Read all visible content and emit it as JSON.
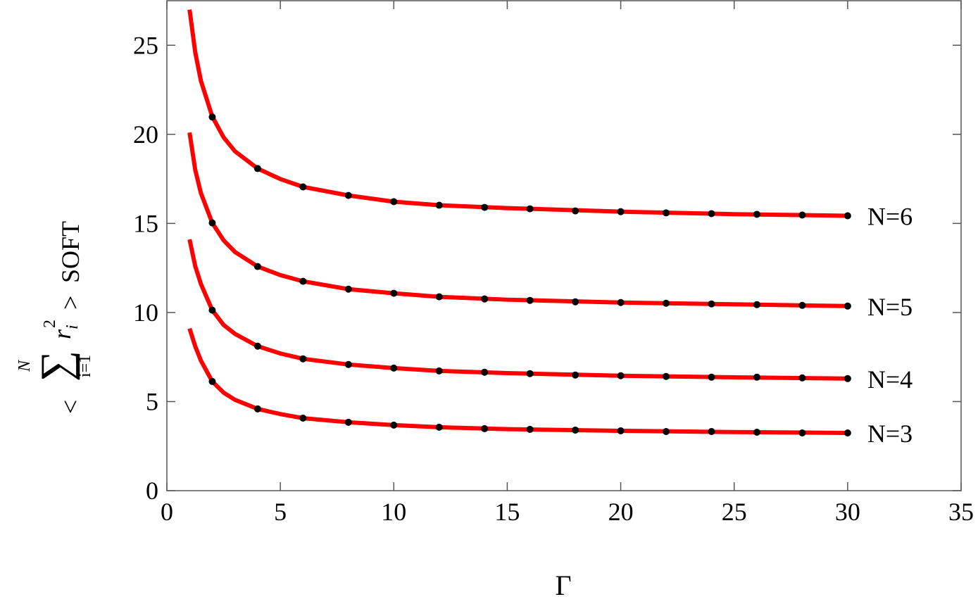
{
  "chart_data": {
    "type": "line",
    "xlabel": "Γ",
    "ylabel": {
      "open": "<",
      "sum": "∑",
      "upper": "N",
      "lower": "i=1",
      "var": "r",
      "sub": "i",
      "sup": "2",
      "close": ">",
      "suffix": "SOFT"
    },
    "xlim": [
      0,
      35
    ],
    "ylim": [
      0,
      27.5
    ],
    "xticks": [
      0,
      5,
      10,
      15,
      20,
      25,
      30,
      35
    ],
    "yticks": [
      0,
      5,
      10,
      15,
      20,
      25
    ],
    "x": [
      1,
      1.25,
      1.5,
      2,
      2.5,
      3,
      4,
      5,
      6,
      8,
      10,
      12,
      15,
      20,
      25,
      30
    ],
    "marker_x": [
      2,
      4,
      6,
      8,
      10,
      12,
      14,
      16,
      18,
      20,
      22,
      24,
      26,
      28,
      30
    ],
    "marker_color": "#000000",
    "series": [
      {
        "name": "N=6",
        "color": "#ff0000",
        "values": [
          27.0,
          24.6,
          23.0,
          21.0,
          19.83,
          19.05,
          18.08,
          17.49,
          17.05,
          16.57,
          16.22,
          16.02,
          15.86,
          15.66,
          15.52,
          15.43
        ],
        "marker_values": [
          20.97,
          18.08,
          17.05,
          16.57,
          16.22,
          16.02,
          15.9,
          15.82,
          15.7,
          15.66,
          15.59,
          15.55,
          15.51,
          15.47,
          15.43
        ]
      },
      {
        "name": "N=5",
        "color": "#ff0000",
        "values": [
          20.1,
          18.0,
          16.7,
          15.03,
          14.05,
          13.4,
          12.58,
          12.1,
          11.75,
          11.31,
          11.08,
          10.88,
          10.72,
          10.56,
          10.46,
          10.36
        ],
        "marker_values": [
          15.03,
          12.58,
          11.75,
          11.31,
          11.08,
          10.88,
          10.76,
          10.68,
          10.6,
          10.56,
          10.52,
          10.48,
          10.44,
          10.4,
          10.36
        ]
      },
      {
        "name": "N=4",
        "color": "#ff0000",
        "values": [
          14.1,
          12.6,
          11.6,
          10.13,
          9.3,
          8.8,
          8.11,
          7.7,
          7.4,
          7.08,
          6.88,
          6.72,
          6.6,
          6.45,
          6.36,
          6.29
        ],
        "marker_values": [
          10.13,
          8.11,
          7.4,
          7.08,
          6.88,
          6.72,
          6.65,
          6.57,
          6.49,
          6.45,
          6.41,
          6.37,
          6.37,
          6.33,
          6.29
        ]
      },
      {
        "name": "N=3",
        "color": "#ff0000",
        "values": [
          9.1,
          8.1,
          7.3,
          6.13,
          5.5,
          5.1,
          4.59,
          4.3,
          4.07,
          3.84,
          3.68,
          3.56,
          3.45,
          3.36,
          3.29,
          3.24
        ],
        "marker_values": [
          6.13,
          4.59,
          4.07,
          3.84,
          3.68,
          3.56,
          3.48,
          3.44,
          3.4,
          3.36,
          3.32,
          3.32,
          3.28,
          3.24,
          3.24
        ]
      }
    ]
  }
}
